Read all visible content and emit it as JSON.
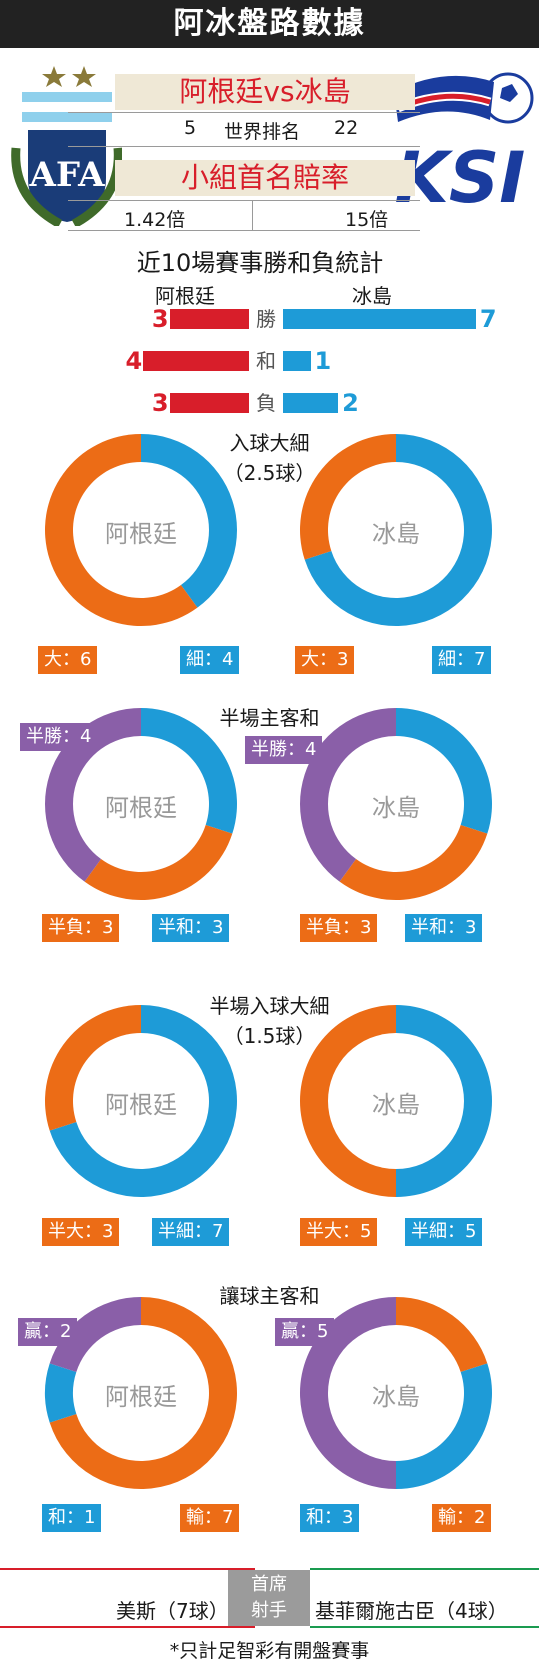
{
  "header": {
    "title": "阿冰盤路數據",
    "match": "阿根廷vs冰島",
    "rank_left": "5",
    "rank_label": "世界排名",
    "rank_right": "22",
    "odds_title": "小組首名賠率",
    "odds_left": "1.42倍",
    "odds_right": "15倍",
    "logo_left_text": "AFA",
    "logo_right_text": "KSI"
  },
  "colors": {
    "red": "#d81e2a",
    "blue": "#1e9bd7",
    "orange": "#ec6c16",
    "purple": "#8a5fa8"
  },
  "recent": {
    "title": "近10場賽事勝和負統計",
    "team_left": "阿根廷",
    "team_right": "冰島",
    "rows": [
      {
        "label": "勝",
        "left": 3,
        "right": 7
      },
      {
        "label": "和",
        "left": 4,
        "right": 1
      },
      {
        "label": "負",
        "left": 3,
        "right": 2
      }
    ]
  },
  "chart_data": [
    {
      "type": "pie",
      "title": "入球大細",
      "subtitle": "（2.5球）",
      "charts": [
        {
          "team": "阿根廷",
          "slices": [
            {
              "label": "大：6",
              "value": 6,
              "color": "#ec6c16"
            },
            {
              "label": "細：4",
              "value": 4,
              "color": "#1e9bd7"
            }
          ]
        },
        {
          "team": "冰島",
          "slices": [
            {
              "label": "大：3",
              "value": 3,
              "color": "#ec6c16"
            },
            {
              "label": "細：7",
              "value": 7,
              "color": "#1e9bd7"
            }
          ]
        }
      ]
    },
    {
      "type": "pie",
      "title": "半場主客和",
      "subtitle": "",
      "charts": [
        {
          "team": "阿根廷",
          "slices": [
            {
              "label": "半勝：4",
              "value": 4,
              "color": "#8a5fa8"
            },
            {
              "label": "半負：3",
              "value": 3,
              "color": "#ec6c16"
            },
            {
              "label": "半和：3",
              "value": 3,
              "color": "#1e9bd7"
            }
          ]
        },
        {
          "team": "冰島",
          "slices": [
            {
              "label": "半勝：4",
              "value": 4,
              "color": "#8a5fa8"
            },
            {
              "label": "半負：3",
              "value": 3,
              "color": "#ec6c16"
            },
            {
              "label": "半和：3",
              "value": 3,
              "color": "#1e9bd7"
            }
          ]
        }
      ]
    },
    {
      "type": "pie",
      "title": "半場入球大細",
      "subtitle": "（1.5球）",
      "charts": [
        {
          "team": "阿根廷",
          "slices": [
            {
              "label": "半大：3",
              "value": 3,
              "color": "#ec6c16"
            },
            {
              "label": "半細：7",
              "value": 7,
              "color": "#1e9bd7"
            }
          ]
        },
        {
          "team": "冰島",
          "slices": [
            {
              "label": "半大：5",
              "value": 5,
              "color": "#ec6c16"
            },
            {
              "label": "半細：5",
              "value": 5,
              "color": "#1e9bd7"
            }
          ]
        }
      ]
    },
    {
      "type": "pie",
      "title": "讓球主客和",
      "subtitle": "",
      "charts": [
        {
          "team": "阿根廷",
          "slices": [
            {
              "label": "贏：2",
              "value": 2,
              "color": "#8a5fa8"
            },
            {
              "label": "和：1",
              "value": 1,
              "color": "#1e9bd7"
            },
            {
              "label": "輸：7",
              "value": 7,
              "color": "#ec6c16"
            }
          ]
        },
        {
          "team": "冰島",
          "slices": [
            {
              "label": "贏：5",
              "value": 5,
              "color": "#8a5fa8"
            },
            {
              "label": "和：3",
              "value": 3,
              "color": "#1e9bd7"
            },
            {
              "label": "輸：2",
              "value": 2,
              "color": "#ec6c16"
            }
          ]
        }
      ]
    }
  ],
  "footer": {
    "scorer_left": "美斯（7球）",
    "center_line1": "首席",
    "center_line2": "射手",
    "scorer_right": "基菲爾施古臣（4球）",
    "note": "*只計足智彩有開盤賽事"
  }
}
